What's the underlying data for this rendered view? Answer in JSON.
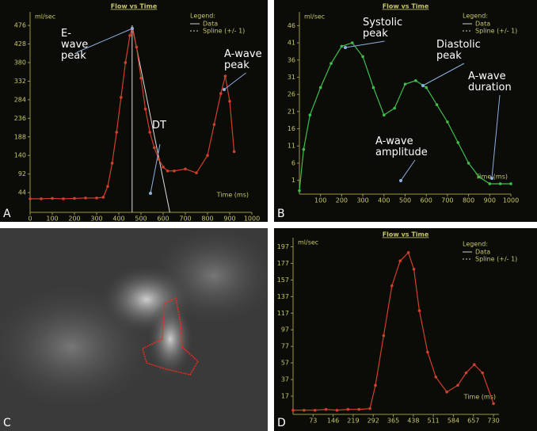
{
  "chart_data": [
    {
      "type": "line",
      "panel_label": "A",
      "title": "Flow vs Time",
      "y_label": "ml/sec",
      "x_label": "Time (ms)",
      "legend": {
        "title": "Legend:",
        "entries": [
          "Data",
          "Spline (+/- 1)"
        ]
      },
      "annotations": [
        "E-wave peak",
        "A-wave peak",
        "DT"
      ],
      "x": [
        0,
        50,
        100,
        150,
        200,
        250,
        300,
        330,
        350,
        370,
        390,
        410,
        430,
        450,
        460,
        480,
        500,
        520,
        540,
        560,
        580,
        600,
        620,
        650,
        700,
        750,
        800,
        830,
        860,
        880,
        900,
        920
      ],
      "series": [
        {
          "color": "#d0402a",
          "values": [
            28,
            28,
            29,
            28,
            29,
            30,
            30,
            32,
            60,
            120,
            200,
            290,
            380,
            450,
            470,
            420,
            340,
            260,
            200,
            160,
            130,
            110,
            100,
            100,
            105,
            95,
            140,
            220,
            300,
            345,
            280,
            150
          ]
        }
      ],
      "xlim": [
        0,
        1000
      ],
      "ylim": [
        -7,
        511
      ],
      "xticks": [
        0,
        100,
        200,
        300,
        400,
        500,
        600,
        700,
        800,
        900,
        1000
      ],
      "yticks": [
        44,
        92,
        140,
        188,
        236,
        284,
        332,
        380,
        428,
        476
      ]
    },
    {
      "type": "line",
      "panel_label": "B",
      "title": "Flow vs Time",
      "y_label": "ml/sec",
      "x_label": "Time (ms)",
      "legend": {
        "title": "Legend:",
        "entries": [
          "Data",
          "Spline (+/- 1)"
        ]
      },
      "annotations": [
        "Systolic peak",
        "Diastolic peak",
        "A-wave duration",
        "A-wave amplitude"
      ],
      "x": [
        0,
        20,
        50,
        100,
        150,
        200,
        250,
        300,
        350,
        400,
        450,
        500,
        550,
        600,
        650,
        700,
        750,
        800,
        850,
        900,
        950,
        1000
      ],
      "series": [
        {
          "color": "#3fbf4a",
          "values": [
            -2,
            10,
            20,
            28,
            35,
            40,
            41,
            37,
            28,
            20,
            22,
            29,
            30,
            28,
            23,
            18,
            12,
            6,
            2,
            0,
            0,
            0
          ]
        }
      ],
      "xlim": [
        0,
        1000
      ],
      "ylim": [
        -3,
        50
      ],
      "xticks": [
        100,
        200,
        300,
        400,
        500,
        600,
        700,
        800,
        900,
        1000
      ],
      "yticks": [
        1,
        6,
        11,
        16,
        21,
        26,
        31,
        36,
        41,
        46
      ]
    },
    {
      "type": "line",
      "panel_label": "D",
      "title": "Flow vs Time",
      "y_label": "ml/sec",
      "x_label": "Time (ms)",
      "legend": {
        "title": "Legend:",
        "entries": [
          "Data",
          "Spline (+/- 1)"
        ]
      },
      "annotations": [],
      "x": [
        0,
        40,
        80,
        120,
        160,
        200,
        240,
        280,
        300,
        330,
        360,
        390,
        420,
        440,
        460,
        490,
        520,
        560,
        600,
        630,
        660,
        690,
        730
      ],
      "series": [
        {
          "color": "#d0402a",
          "values": [
            0,
            0,
            0,
            1,
            0,
            1,
            1,
            2,
            30,
            90,
            150,
            180,
            190,
            170,
            120,
            70,
            40,
            22,
            30,
            45,
            55,
            45,
            8
          ]
        }
      ],
      "xlim": [
        0,
        750
      ],
      "ylim": [
        -5,
        208
      ],
      "xticks": [
        73,
        146,
        219,
        292,
        365,
        438,
        511,
        584,
        657,
        730
      ],
      "yticks": [
        17,
        37,
        57,
        77,
        97,
        117,
        137,
        157,
        177,
        197
      ]
    }
  ],
  "image_panel": {
    "panel_label": "C"
  }
}
